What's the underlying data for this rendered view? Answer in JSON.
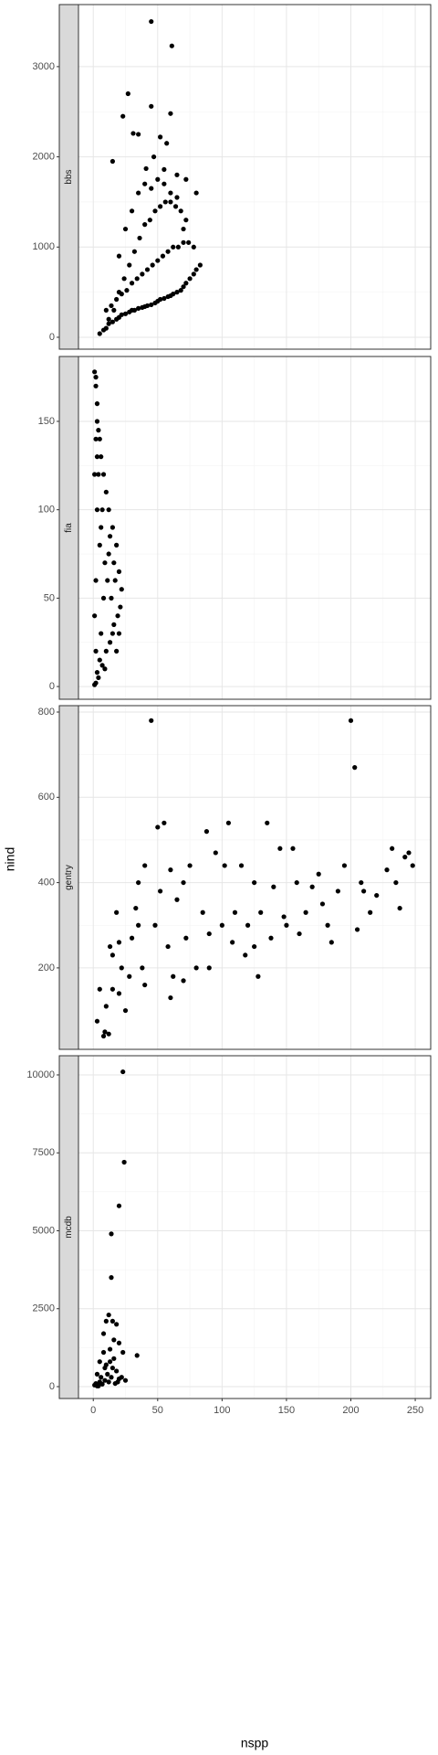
{
  "xlabel": "nspp",
  "ylabel": "nind",
  "chart_data": [
    {
      "type": "scatter",
      "title": "bbs",
      "color": "#000000",
      "grid": true,
      "xlim": [
        -11.5,
        262
      ],
      "xticks": [
        0,
        50,
        100,
        150,
        200,
        250
      ],
      "ylim": [
        -132,
        3688
      ],
      "yticks": [
        0,
        1000,
        2000,
        3000
      ],
      "x": [
        5,
        8,
        10,
        12,
        15,
        18,
        20,
        22,
        25,
        28,
        30,
        32,
        35,
        38,
        40,
        42,
        45,
        48,
        50,
        52,
        55,
        58,
        60,
        62,
        65,
        68,
        70,
        72,
        75,
        78,
        80,
        83,
        10,
        14,
        18,
        22,
        26,
        30,
        34,
        38,
        42,
        46,
        50,
        54,
        58,
        62,
        66,
        70,
        74,
        78,
        12,
        16,
        20,
        24,
        28,
        32,
        36,
        40,
        44,
        48,
        52,
        56,
        60,
        64,
        68,
        72,
        20,
        25,
        30,
        35,
        40,
        45,
        50,
        55,
        60,
        65,
        70,
        45,
        61,
        27,
        45,
        23,
        60,
        31,
        35,
        52,
        57,
        15,
        47,
        55,
        41,
        65,
        72,
        80
      ],
      "y": [
        40,
        80,
        100,
        150,
        170,
        200,
        220,
        250,
        260,
        280,
        300,
        300,
        320,
        330,
        340,
        350,
        360,
        380,
        400,
        420,
        430,
        450,
        460,
        480,
        500,
        520,
        560,
        600,
        650,
        700,
        750,
        800,
        300,
        350,
        420,
        480,
        520,
        600,
        650,
        700,
        750,
        800,
        850,
        900,
        950,
        1000,
        1000,
        1050,
        1050,
        1000,
        200,
        300,
        500,
        650,
        800,
        950,
        1100,
        1250,
        1300,
        1400,
        1450,
        1500,
        1500,
        1450,
        1400,
        1300,
        900,
        1200,
        1400,
        1600,
        1700,
        1650,
        1750,
        1700,
        1600,
        1550,
        1200,
        3500,
        3230,
        2700,
        2560,
        2450,
        2480,
        2260,
        2250,
        2220,
        2150,
        1950,
        2000,
        1860,
        1870,
        1800,
        1750,
        1600
      ]
    },
    {
      "type": "scatter",
      "title": "fia",
      "color": "#000000",
      "grid": true,
      "xlim": [
        -11.5,
        262
      ],
      "xticks": [
        0,
        50,
        100,
        150,
        200,
        250
      ],
      "ylim": [
        -7.2,
        186.7
      ],
      "yticks": [
        0,
        50,
        100,
        150
      ],
      "x": [
        1,
        2,
        2,
        3,
        3,
        4,
        5,
        6,
        8,
        10,
        12,
        15,
        18,
        20,
        22,
        21,
        19,
        16,
        13,
        10,
        7,
        4,
        1,
        2,
        3,
        5,
        6,
        8,
        9,
        11,
        14,
        17,
        3,
        4,
        5,
        2,
        1,
        2,
        7,
        12,
        15,
        20,
        18,
        9,
        6,
        13,
        16,
        1,
        2,
        3
      ],
      "y": [
        178,
        175,
        170,
        160,
        150,
        145,
        140,
        130,
        120,
        110,
        100,
        90,
        80,
        65,
        55,
        45,
        40,
        35,
        25,
        20,
        12,
        5,
        1,
        2,
        8,
        15,
        30,
        50,
        70,
        60,
        50,
        60,
        100,
        120,
        80,
        60,
        40,
        20,
        100,
        75,
        30,
        30,
        20,
        10,
        90,
        85,
        70,
        120,
        140,
        130
      ]
    },
    {
      "type": "scatter",
      "title": "gentry",
      "color": "#000000",
      "grid": true,
      "xlim": [
        -11.5,
        262
      ],
      "xticks": [
        0,
        50,
        100,
        150,
        200,
        250
      ],
      "ylim": [
        9,
        815
      ],
      "yticks": [
        200,
        400,
        600,
        800
      ],
      "x": [
        3,
        5,
        8,
        9,
        12,
        15,
        10,
        13,
        18,
        20,
        22,
        25,
        30,
        33,
        35,
        38,
        40,
        45,
        48,
        50,
        55,
        52,
        58,
        60,
        62,
        65,
        70,
        72,
        75,
        80,
        85,
        88,
        90,
        95,
        100,
        102,
        105,
        108,
        110,
        115,
        118,
        120,
        125,
        128,
        130,
        135,
        138,
        140,
        145,
        148,
        150,
        155,
        158,
        160,
        165,
        170,
        175,
        178,
        182,
        185,
        190,
        195,
        200,
        203,
        205,
        208,
        210,
        215,
        220,
        228,
        232,
        235,
        238,
        242,
        245,
        248,
        60,
        70,
        40,
        28,
        20,
        15,
        35,
        90,
        125
      ],
      "y": [
        75,
        150,
        40,
        50,
        45,
        150,
        110,
        250,
        330,
        140,
        200,
        100,
        270,
        340,
        400,
        200,
        440,
        780,
        300,
        530,
        540,
        380,
        250,
        430,
        180,
        360,
        400,
        270,
        440,
        200,
        330,
        520,
        280,
        470,
        300,
        440,
        540,
        260,
        330,
        440,
        230,
        300,
        400,
        180,
        330,
        540,
        270,
        390,
        480,
        320,
        300,
        480,
        400,
        280,
        330,
        390,
        420,
        350,
        300,
        260,
        380,
        440,
        780,
        670,
        290,
        400,
        380,
        330,
        370,
        430,
        480,
        400,
        340,
        460,
        470,
        440,
        130,
        170,
        160,
        180,
        260,
        230,
        300,
        200,
        250
      ]
    },
    {
      "type": "scatter",
      "title": "mcdb",
      "color": "#000000",
      "grid": true,
      "xlim": [
        -11.5,
        262
      ],
      "xticks": [
        0,
        50,
        100,
        150,
        200,
        250
      ],
      "ylim": [
        -381,
        10615
      ],
      "yticks": [
        0,
        2500,
        5000,
        7500,
        10000
      ],
      "x": [
        23,
        24,
        20,
        14,
        14,
        12,
        15,
        18,
        10,
        8,
        16,
        20,
        13,
        8,
        23,
        34,
        5,
        10,
        15,
        18,
        3,
        6,
        9,
        12,
        2,
        1,
        4,
        7,
        14,
        20,
        17,
        11,
        13,
        22,
        5,
        9,
        16,
        19,
        25,
        3
      ],
      "y": [
        10100,
        7200,
        5800,
        4900,
        3500,
        2300,
        2100,
        2000,
        2100,
        1700,
        1500,
        1400,
        1200,
        1100,
        1100,
        1000,
        800,
        700,
        600,
        500,
        400,
        300,
        200,
        150,
        100,
        50,
        20,
        80,
        300,
        250,
        100,
        400,
        800,
        300,
        150,
        600,
        900,
        150,
        200,
        20
      ]
    }
  ]
}
